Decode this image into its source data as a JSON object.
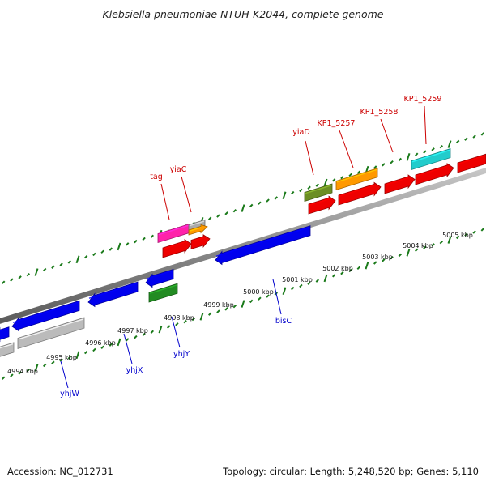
{
  "title": "Klebsiella pneumoniae NTUH-K2044, complete genome",
  "footer": {
    "accession": "Accession: NC_012731",
    "summary": "Topology: circular; Length: 5,248,520 bp; Genes: 5,110"
  },
  "colors": {
    "backbone": "#888888",
    "ticks": "#1a7a1a",
    "forward_label": "#cc0000",
    "reverse_label": "#0000cc",
    "tick_label": "#111111"
  },
  "scale_labels": [
    "4994 kbp",
    "4995 kbp",
    "4996 kbp",
    "4997 kbp",
    "4998 kbp",
    "4999 kbp",
    "5000 kbp",
    "5001 kbp",
    "5002 kbp",
    "5003 kbp",
    "5004 kbp",
    "5005 kbp"
  ],
  "gene_labels": {
    "forward": [
      "tag",
      "yiaC",
      "yiaD",
      "KP1_5257",
      "KP1_5258",
      "KP1_5259"
    ],
    "reverse": [
      "yhjW",
      "yhjX",
      "yhjY",
      "bisC"
    ]
  }
}
